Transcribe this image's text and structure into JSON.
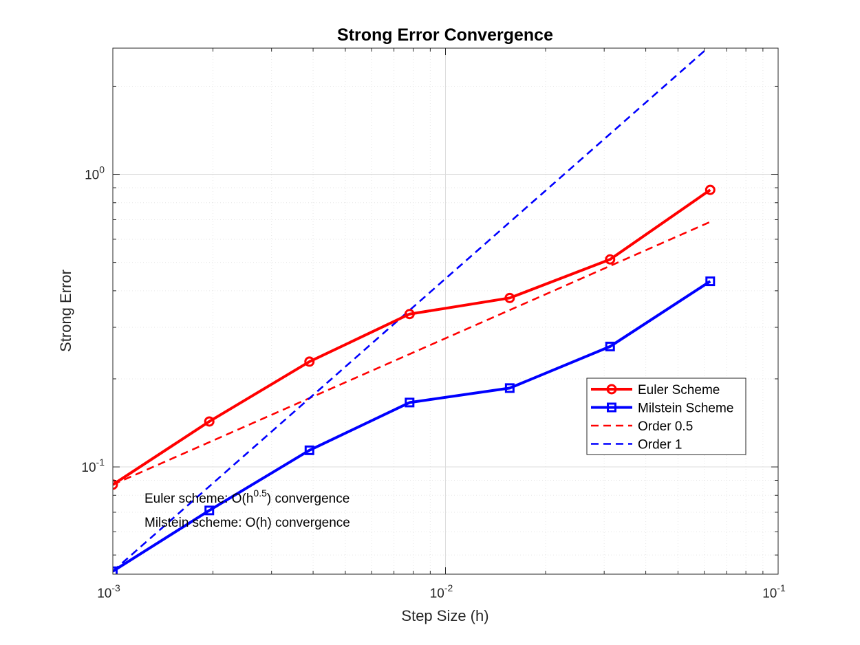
{
  "chart_data": {
    "type": "line",
    "title": "Strong Error Convergence",
    "xlabel": "Step Size (h)",
    "ylabel": "Strong Error",
    "xscale": "log",
    "yscale": "log",
    "xlim": [
      0.001,
      0.1
    ],
    "ylim": [
      0.043,
      2.7
    ],
    "grid": true,
    "x_ticks": [
      {
        "value": 0.001,
        "base": "10",
        "exp": "-3"
      },
      {
        "value": 0.01,
        "base": "10",
        "exp": "-2"
      },
      {
        "value": 0.1,
        "base": "10",
        "exp": "-1"
      }
    ],
    "y_ticks": [
      {
        "value": 0.1,
        "base": "10",
        "exp": "-1"
      },
      {
        "value": 1,
        "base": "10",
        "exp": "0"
      }
    ],
    "series": [
      {
        "name": "Euler Scheme",
        "style": "solid",
        "marker": "circle",
        "color": "#ff0000",
        "x": [
          0.001,
          0.00195,
          0.0039,
          0.0078,
          0.0156,
          0.03125,
          0.0625
        ],
        "y": [
          0.087,
          0.143,
          0.229,
          0.333,
          0.378,
          0.512,
          0.885
        ]
      },
      {
        "name": "Milstein Scheme",
        "style": "solid",
        "marker": "square",
        "color": "#0000ff",
        "x": [
          0.001,
          0.00195,
          0.0039,
          0.0078,
          0.0156,
          0.03125,
          0.0625
        ],
        "y": [
          0.044,
          0.071,
          0.114,
          0.166,
          0.186,
          0.258,
          0.431
        ]
      },
      {
        "name": "Order 0.5",
        "style": "dashed",
        "marker": "none",
        "color": "#ff0000",
        "x": [
          0.001,
          0.0625
        ],
        "y": [
          0.087,
          0.688
        ]
      },
      {
        "name": "Order 1",
        "style": "dashed",
        "marker": "none",
        "color": "#0000ff",
        "x": [
          0.001,
          0.0625
        ],
        "y": [
          0.044,
          2.75
        ]
      }
    ],
    "legend_position": "center-right",
    "annotations": [
      {
        "prefix": "Euler scheme: O(h",
        "sup": "0.5",
        "suffix": ") convergence"
      },
      {
        "prefix": "Milstein scheme: O(h) convergence",
        "sup": "",
        "suffix": ""
      }
    ]
  }
}
